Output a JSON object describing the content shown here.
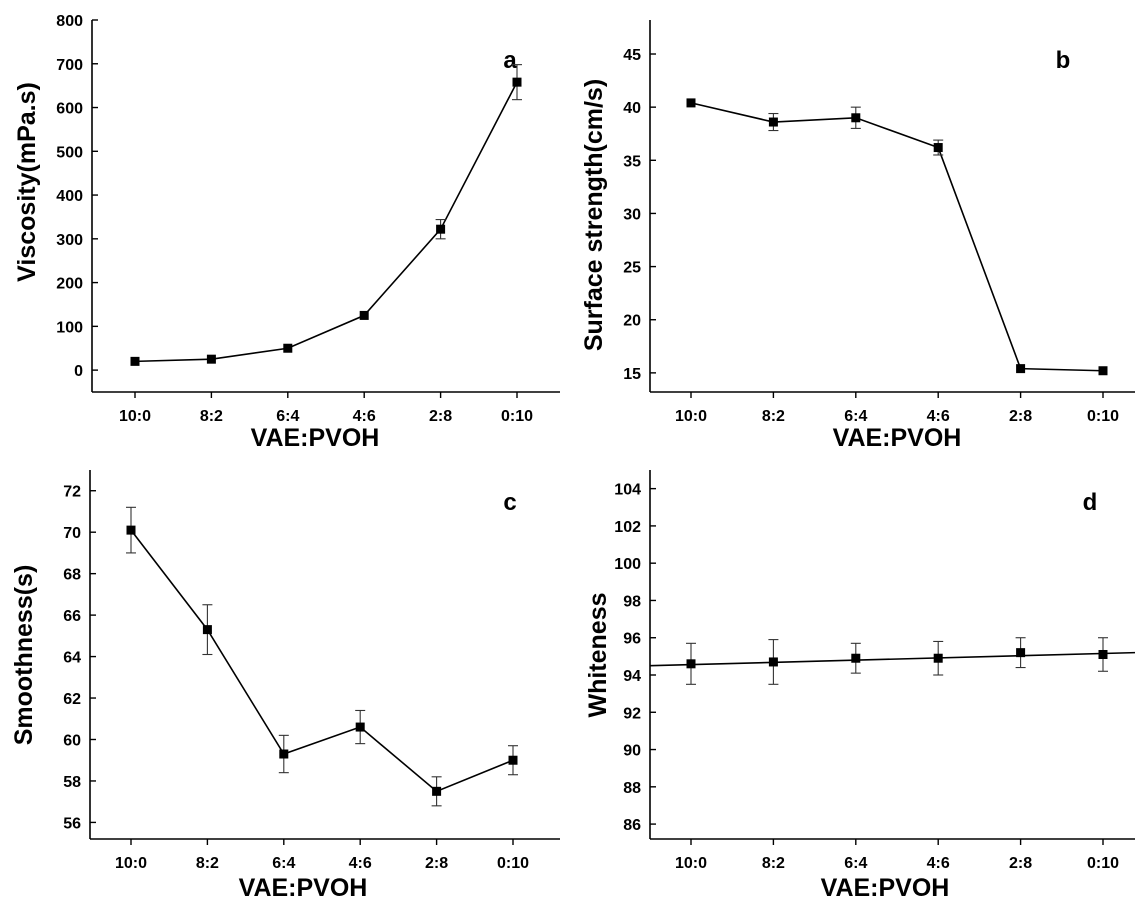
{
  "chart_data": [
    {
      "panel": "a",
      "type": "line",
      "categories": [
        "10:0",
        "8:2",
        "6:4",
        "4:6",
        "2:8",
        "0:10"
      ],
      "series": [
        {
          "values": [
            20,
            25,
            50,
            125,
            322,
            658
          ],
          "errors": [
            0,
            0,
            0,
            0,
            22,
            40
          ]
        }
      ],
      "xlabel": "VAE:PVOH",
      "ylabel": "Viscosity(mPa.s)",
      "ylim": [
        -50,
        800
      ],
      "yticks": [
        0,
        100,
        200,
        300,
        400,
        500,
        600,
        700,
        800
      ],
      "ytick_labels": [
        "0",
        "100",
        "200",
        "300",
        "400",
        "500",
        "600",
        "700",
        "800"
      ],
      "grid": false
    },
    {
      "panel": "b",
      "type": "line",
      "categories": [
        "10:0",
        "8:2",
        "6:4",
        "4:6",
        "2:8",
        "0:10"
      ],
      "series": [
        {
          "values": [
            40.4,
            38.6,
            39.0,
            36.2,
            15.4,
            15.2
          ],
          "errors": [
            0,
            0.8,
            1.0,
            0.7,
            0,
            0
          ]
        }
      ],
      "xlabel": "VAE:PVOH",
      "ylabel": "Surface strength(cm/s)",
      "ylim": [
        13.2,
        48.2
      ],
      "yticks": [
        15,
        20,
        25,
        30,
        35,
        40,
        45
      ],
      "ytick_labels": [
        "15",
        "20",
        "25",
        "30",
        "35",
        "40",
        "45"
      ],
      "grid": false
    },
    {
      "panel": "c",
      "type": "line",
      "categories": [
        "10:0",
        "8:2",
        "6:4",
        "4:6",
        "2:8",
        "0:10"
      ],
      "series": [
        {
          "values": [
            70.1,
            65.3,
            59.3,
            60.6,
            57.5,
            59.0
          ],
          "errors": [
            1.1,
            1.2,
            0.9,
            0.8,
            0.7,
            0.7
          ]
        }
      ],
      "xlabel": "VAE:PVOH",
      "ylabel": "Smoothness(s)",
      "ylim": [
        55.2,
        73
      ],
      "yticks": [
        56,
        58,
        60,
        62,
        64,
        66,
        68,
        70,
        72
      ],
      "ytick_labels": [
        "56",
        "58",
        "60",
        "62",
        "64",
        "66",
        "68",
        "70",
        "72"
      ],
      "grid": false
    },
    {
      "panel": "d",
      "type": "line",
      "categories": [
        "10:0",
        "8:2",
        "6:4",
        "4:6",
        "2:8",
        "0:10"
      ],
      "series": [
        {
          "values": [
            94.6,
            94.7,
            94.9,
            94.9,
            95.2,
            95.1
          ],
          "errors": [
            1.1,
            1.2,
            0.8,
            0.9,
            0.8,
            0.9
          ]
        }
      ],
      "fit_line": {
        "start": 94.5,
        "end": 95.2
      },
      "xlabel": "VAE:PVOH",
      "ylabel": "Whiteness",
      "ylim": [
        85.2,
        105
      ],
      "yticks": [
        86,
        88,
        90,
        92,
        94,
        96,
        98,
        100,
        102,
        104
      ],
      "ytick_labels": [
        "86",
        "88",
        "90",
        "92",
        "94",
        "96",
        "98",
        "100",
        "102",
        "104"
      ],
      "grid": false
    }
  ]
}
